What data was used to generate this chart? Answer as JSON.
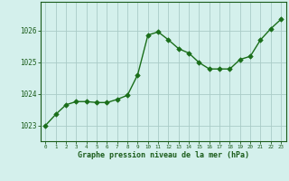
{
  "x": [
    0,
    1,
    2,
    3,
    4,
    5,
    6,
    7,
    8,
    9,
    10,
    11,
    12,
    13,
    14,
    15,
    16,
    17,
    18,
    19,
    20,
    21,
    22,
    23
  ],
  "y": [
    1023.0,
    1023.35,
    1023.65,
    1023.75,
    1023.75,
    1023.72,
    1023.72,
    1023.82,
    1023.95,
    1024.6,
    1025.85,
    1025.95,
    1025.7,
    1025.42,
    1025.28,
    1024.98,
    1024.78,
    1024.78,
    1024.78,
    1025.08,
    1025.18,
    1025.7,
    1026.05,
    1026.35
  ],
  "line_color": "#1a6e1a",
  "marker_color": "#1a6e1a",
  "bg_color": "#d4f0ec",
  "grid_color": "#aaccc7",
  "axis_label_color": "#1a5c1a",
  "tick_label_color": "#1a5c1a",
  "xlabel": "Graphe pression niveau de la mer (hPa)",
  "ylim": [
    1022.5,
    1026.9
  ],
  "yticks": [
    1023,
    1024,
    1025,
    1026
  ],
  "xticks": [
    0,
    1,
    2,
    3,
    4,
    5,
    6,
    7,
    8,
    9,
    10,
    11,
    12,
    13,
    14,
    15,
    16,
    17,
    18,
    19,
    20,
    21,
    22,
    23
  ],
  "line_width": 1.0,
  "marker_size": 2.8
}
